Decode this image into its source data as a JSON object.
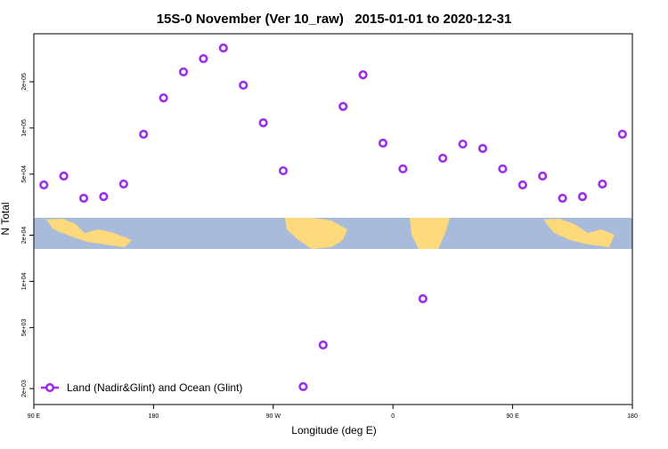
{
  "chart_data": {
    "type": "scatter",
    "title": "15S-0 November (Ver 10_raw)   2015-01-01 to 2020-12-31",
    "x_label": "Longitude (deg E)",
    "y_label": "N Total",
    "xlim": [
      90,
      540
    ],
    "xticks": [
      {
        "value": 90,
        "label": "90 E"
      },
      180,
      {
        "value": 270,
        "label": "90 W"
      },
      {
        "value": 360,
        "label": "0"
      },
      {
        "value": 450,
        "label": "90 E"
      },
      {
        "value": 540,
        "label": "180"
      }
    ],
    "ylim": [
      1574,
      411000
    ],
    "log_y": true,
    "yticks": [
      {
        "value": 2000,
        "label": "2e+03"
      },
      {
        "value": 5000,
        "label": "5e+03"
      },
      {
        "value": 10000,
        "label": "1e+04"
      },
      {
        "value": 20000,
        "label": "2e+04"
      },
      {
        "value": 50000,
        "label": "5e+04"
      },
      {
        "value": 100000,
        "label": "1e+05"
      },
      {
        "value": 200000,
        "label": "2e+05"
      }
    ],
    "legend_position": "bottom-left",
    "series": [
      {
        "name": "Land (Nadir&Glint) and Ocean (Glint)",
        "color": "#9b30e6",
        "x": [
          97.5,
          112.5,
          127.5,
          142.5,
          157.5,
          172.5,
          187.5,
          202.5,
          217.5,
          232.5,
          247.5,
          262.5,
          277.5,
          292.5,
          307.5,
          322.5,
          337.5,
          352.5,
          367.5,
          382.5,
          397.5,
          412.5,
          427.5,
          442.5,
          457.5,
          472.5,
          487.5,
          502.5,
          517.5,
          532.5
        ],
        "values": [
          42500,
          48600,
          34800,
          35700,
          43100,
          91000,
          157000,
          232000,
          283000,
          332000,
          190000,
          108000,
          52600,
          2060,
          3850,
          138000,
          222000,
          79600,
          54100,
          7700,
          63500,
          78500,
          73500,
          54100,
          42500,
          48600,
          34800,
          35700,
          43100,
          91000
        ]
      }
    ]
  }
}
